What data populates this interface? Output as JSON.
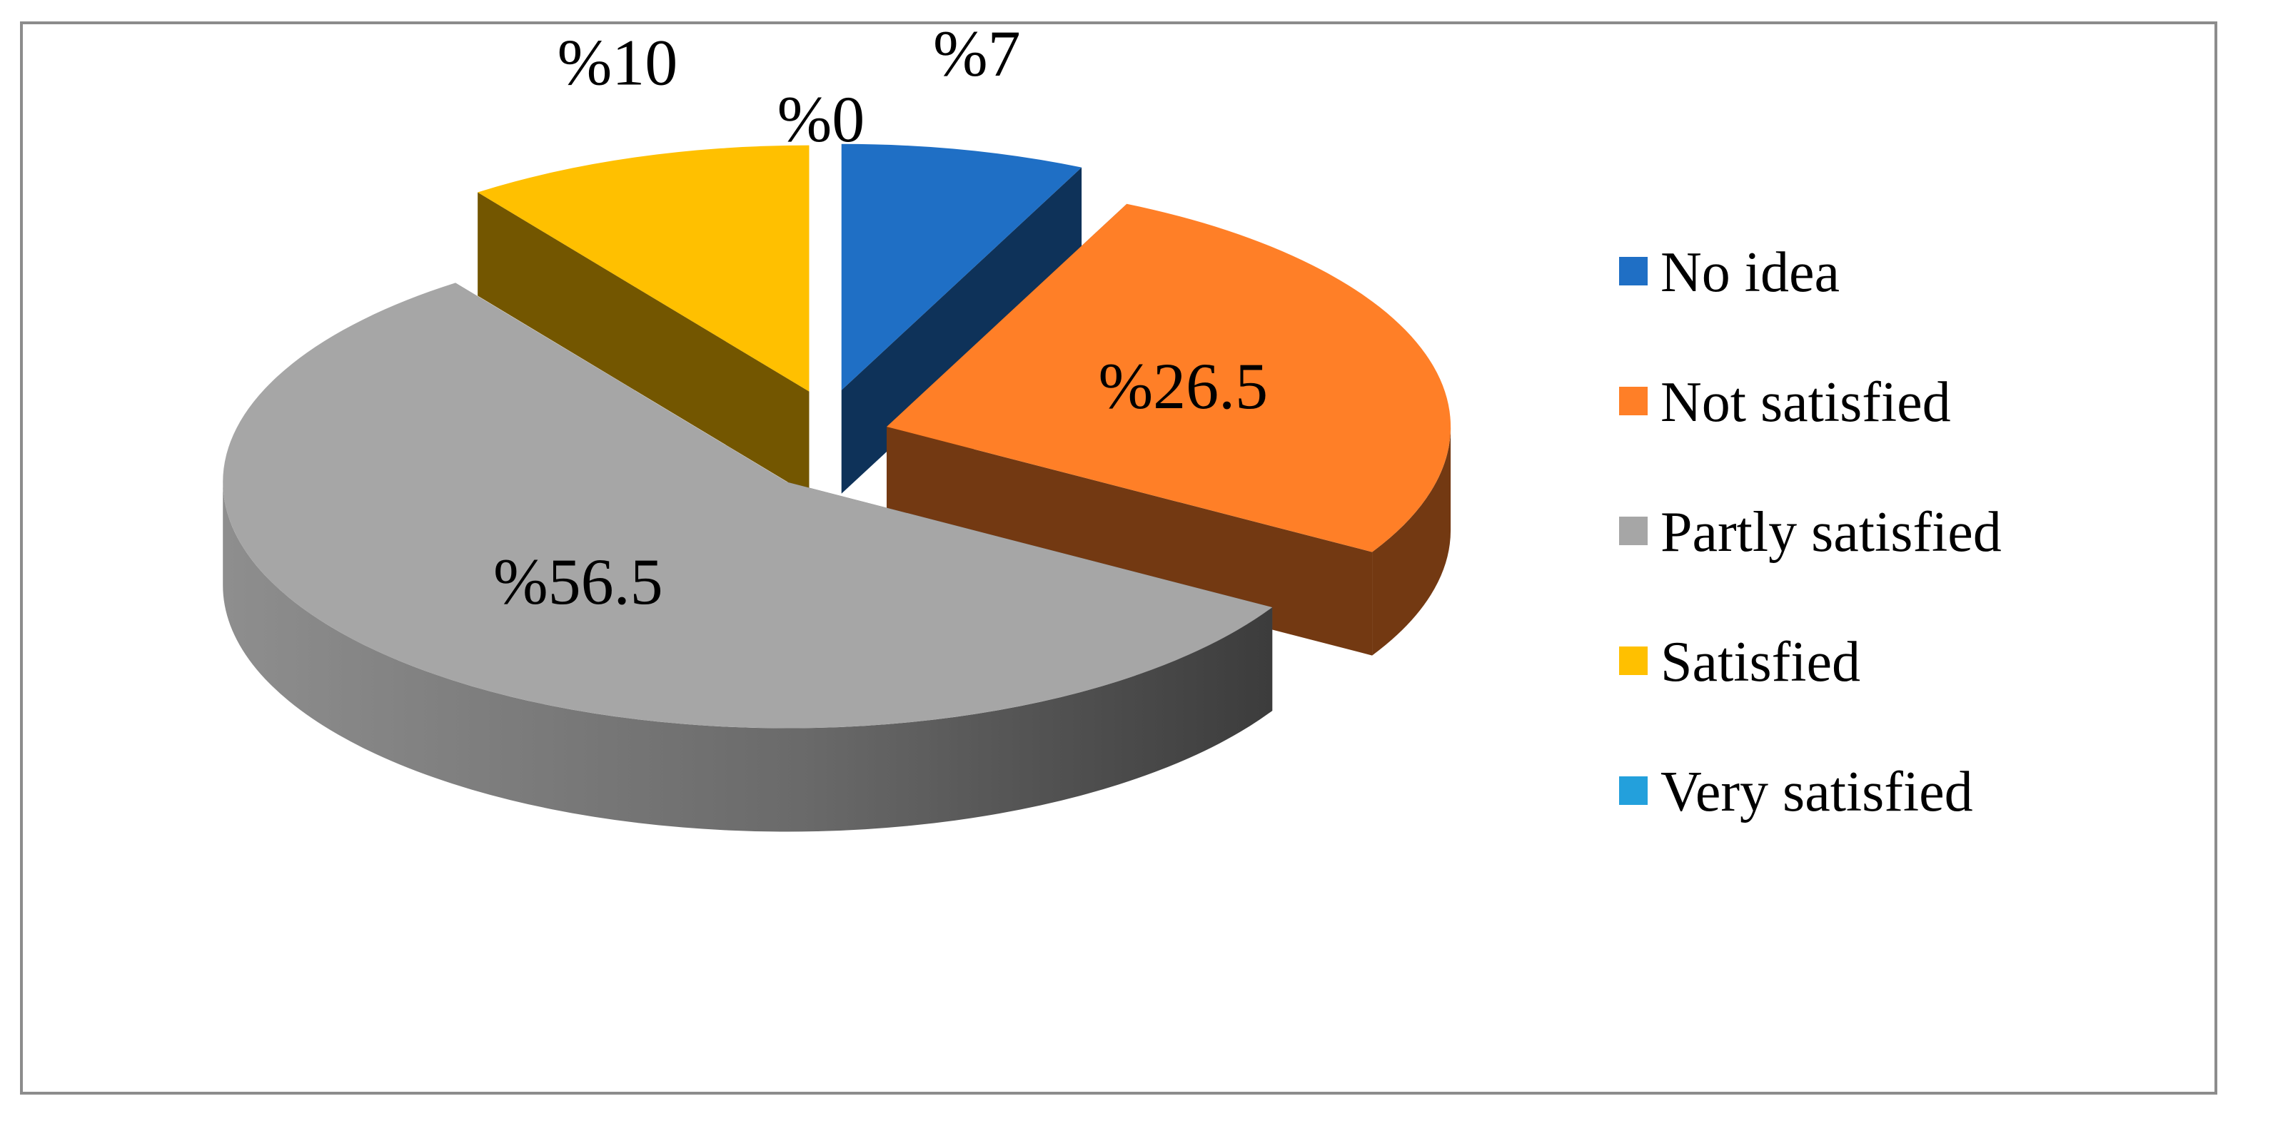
{
  "chart_data": {
    "type": "pie",
    "style": "3d-exploded",
    "categories": [
      "No idea",
      "Not satisfied",
      "Partly satisfied",
      "Satisfied",
      "Very satisfied"
    ],
    "values": [
      7,
      26.5,
      56.5,
      10,
      0
    ],
    "labels": [
      "%7",
      "%26.5",
      "%56.5",
      "%10",
      "%0"
    ],
    "colors": [
      "#1f6fc5",
      "#ff7f27",
      "#a6a6a6",
      "#ffc000",
      "#23a0dc"
    ],
    "legend": {
      "position": "right",
      "entries": [
        "No idea",
        "Not satisfied",
        "Partly satisfied",
        "Satisfied",
        "Very satisfied"
      ]
    }
  }
}
